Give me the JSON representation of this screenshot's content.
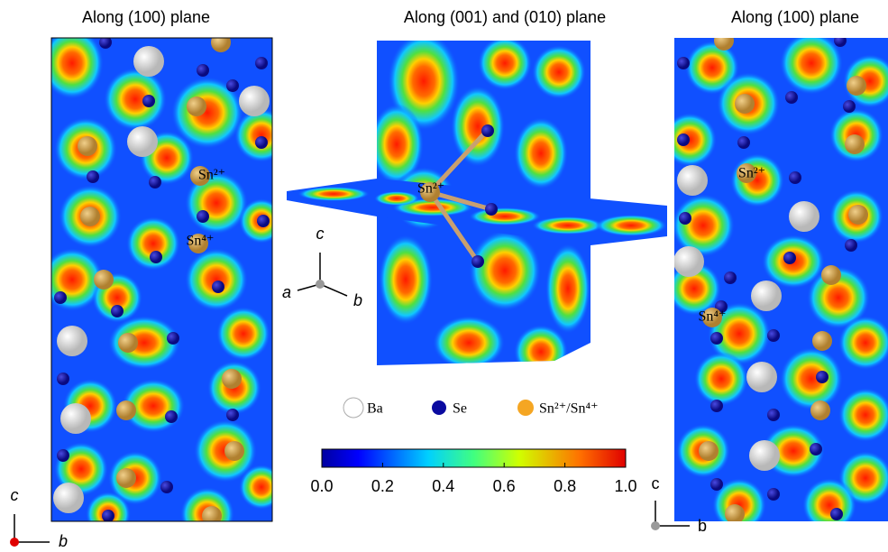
{
  "panels": [
    {
      "title": "Along (100) plane",
      "labels": [
        "Sn²⁺",
        "Sn⁴⁺"
      ],
      "axes": [
        "c",
        "b"
      ]
    },
    {
      "title": "Along (001) and (010) plane",
      "labels": [
        "Sn²⁺"
      ],
      "axes": [
        "c",
        "a",
        "b"
      ]
    },
    {
      "title": "Along (100) plane",
      "labels": [
        "Sn²⁺",
        "Sn⁴⁺"
      ],
      "axes": [
        "c",
        "b"
      ]
    }
  ],
  "legend": [
    "Ba",
    "Se",
    "Sn²⁺/Sn⁴⁺"
  ],
  "colorbar": {
    "range": [
      0,
      1
    ],
    "ticks": [
      {
        "value": 0,
        "label": "0.0"
      },
      {
        "value": 0.2,
        "label": "0.2"
      },
      {
        "value": 0.4,
        "label": "0.4"
      },
      {
        "value": 0.6,
        "label": "0.6"
      },
      {
        "value": 0.8,
        "label": "0.8"
      },
      {
        "value": 1,
        "label": "1.0"
      }
    ]
  }
}
